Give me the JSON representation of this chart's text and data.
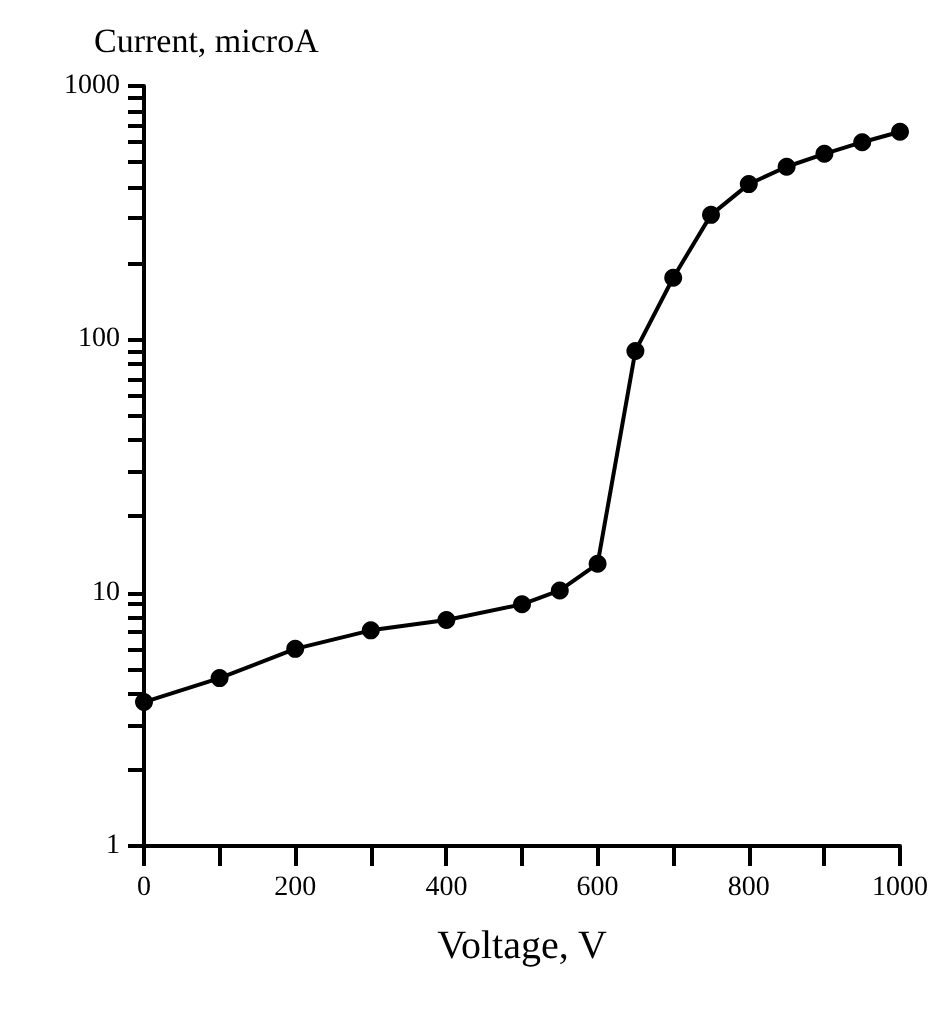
{
  "chart_data": {
    "type": "line",
    "xlabel": "Voltage, V",
    "ylabel": "Current, microA",
    "x": [
      0,
      100,
      200,
      300,
      400,
      500,
      550,
      600,
      650,
      700,
      750,
      800,
      850,
      900,
      950,
      1000
    ],
    "series": [
      {
        "color": "#000000",
        "values": [
          3.7,
          4.6,
          6.0,
          7.1,
          7.8,
          9.0,
          10.2,
          13,
          90,
          175,
          310,
          410,
          480,
          540,
          600,
          660
        ]
      }
    ],
    "xlim": [
      0,
      1000
    ],
    "xticks": [
      0,
      {
        "value": 100,
        "label": null
      },
      200,
      {
        "value": 300,
        "label": null
      },
      400,
      {
        "value": 500,
        "label": null
      },
      600,
      {
        "value": 700,
        "label": null
      },
      800,
      {
        "value": 900,
        "label": null
      },
      1000
    ],
    "ylim": [
      1,
      1000
    ],
    "yticks": [
      1,
      {
        "value": 2,
        "label": null
      },
      {
        "value": 3,
        "label": null
      },
      {
        "value": 4,
        "label": null
      },
      {
        "value": 5,
        "label": null
      },
      {
        "value": 6,
        "label": null
      },
      {
        "value": 7,
        "label": null
      },
      {
        "value": 8,
        "label": null
      },
      {
        "value": 9,
        "label": null
      },
      10,
      {
        "value": 20,
        "label": null
      },
      {
        "value": 30,
        "label": null
      },
      {
        "value": 40,
        "label": null
      },
      {
        "value": 50,
        "label": null
      },
      {
        "value": 60,
        "label": null
      },
      {
        "value": 70,
        "label": null
      },
      {
        "value": 80,
        "label": null
      },
      {
        "value": 90,
        "label": null
      },
      100,
      {
        "value": 200,
        "label": null
      },
      {
        "value": 300,
        "label": null
      },
      {
        "value": 400,
        "label": null
      },
      {
        "value": 500,
        "label": null
      },
      {
        "value": 600,
        "label": null
      },
      {
        "value": 700,
        "label": null
      },
      {
        "value": 800,
        "label": null
      },
      {
        "value": 900,
        "label": null
      },
      1000
    ],
    "log": "y",
    "marker": "circle",
    "line_style": "solid"
  }
}
